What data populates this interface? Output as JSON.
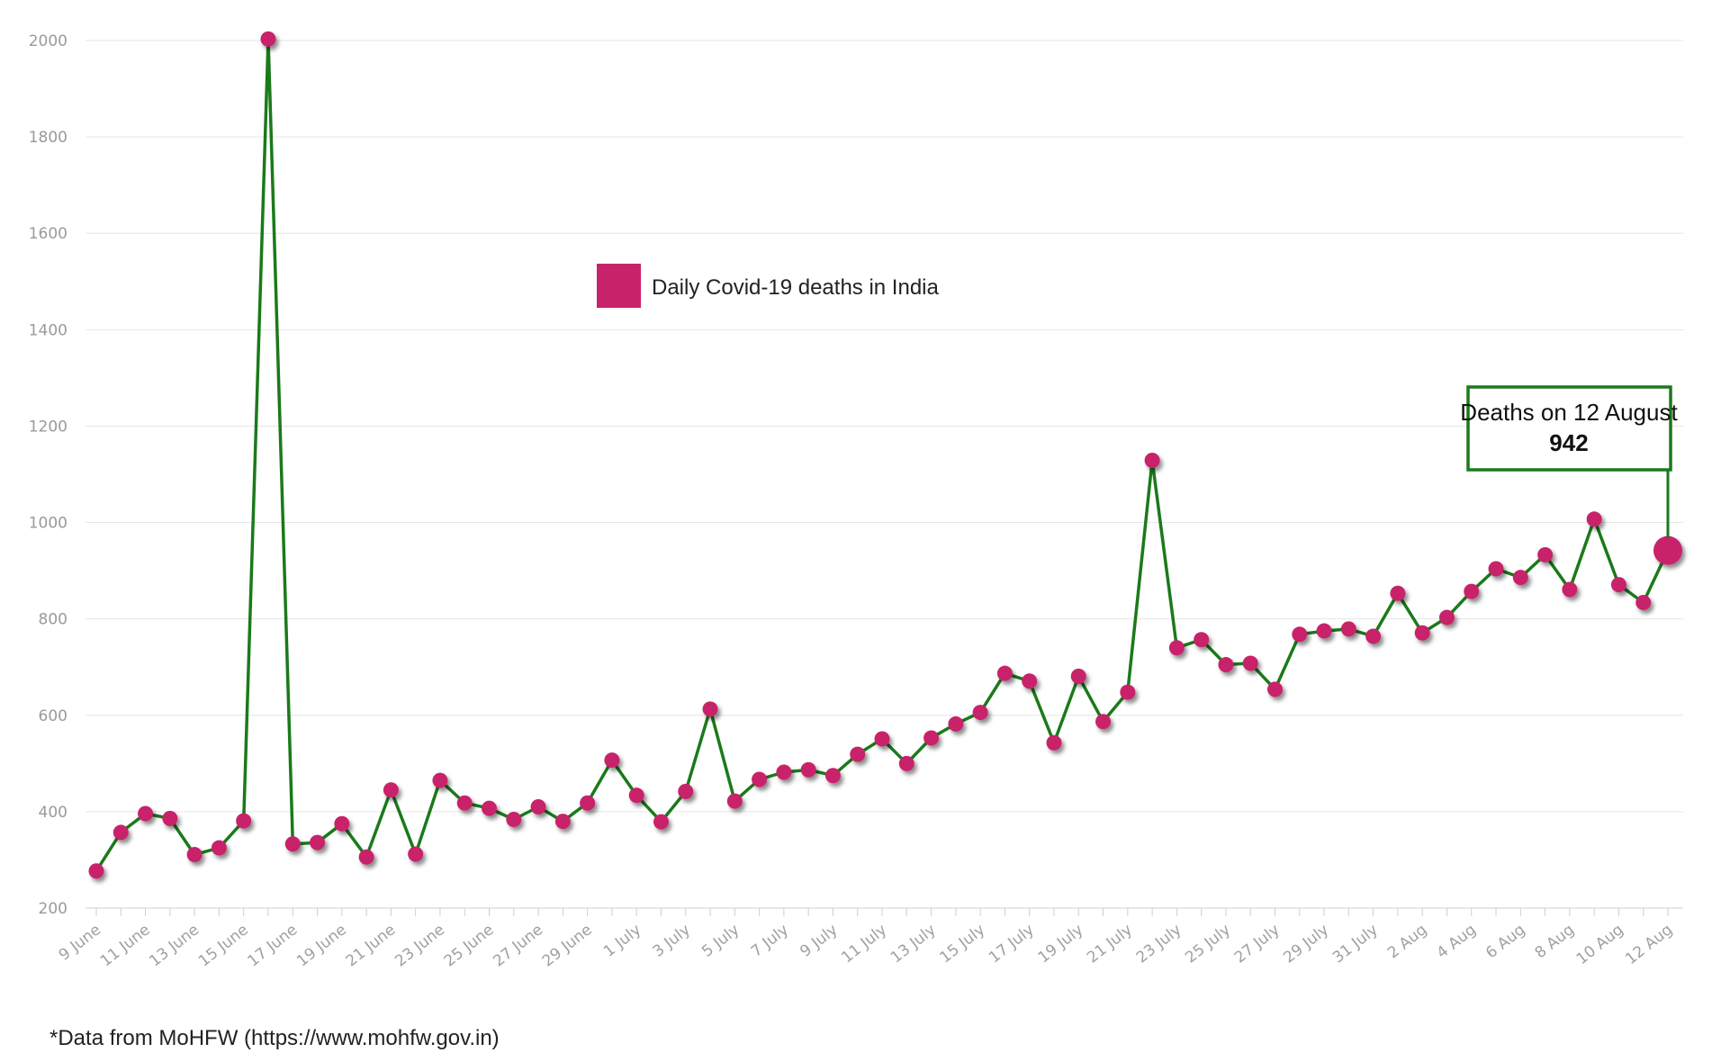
{
  "chart_data": {
    "type": "line",
    "title": "",
    "xlabel": "",
    "ylabel": "",
    "ylim": [
      200,
      2000
    ],
    "yticks": [
      200,
      400,
      600,
      800,
      1000,
      1200,
      1400,
      1600,
      1800,
      2000
    ],
    "grid": true,
    "legend_placement": "top-center",
    "series": [
      {
        "name": "Daily Covid-19 deaths in India",
        "line_color": "#1a7a1a",
        "marker_color": "#c8226a",
        "x": [
          "9 June",
          "10 June",
          "11 June",
          "12 June",
          "13 June",
          "14 June",
          "15 June",
          "16 June",
          "17 June",
          "18 June",
          "19 June",
          "20 June",
          "21 June",
          "22 June",
          "23 June",
          "24 June",
          "25 June",
          "26 June",
          "27 June",
          "28 June",
          "29 June",
          "30 June",
          "1 July",
          "2 July",
          "3 July",
          "4 July",
          "5 July",
          "6 July",
          "7 July",
          "8 July",
          "9 July",
          "10 July",
          "11 July",
          "12 July",
          "13 July",
          "14 July",
          "15 July",
          "16 July",
          "17 July",
          "18 July",
          "19 July",
          "20 July",
          "21 July",
          "22 July",
          "23 July",
          "24 July",
          "25 July",
          "26 July",
          "27 July",
          "28 July",
          "29 July",
          "30 July",
          "31 July",
          "1 Aug",
          "2 Aug",
          "3 Aug",
          "4 Aug",
          "5 Aug",
          "6 Aug",
          "7 Aug",
          "8 Aug",
          "9 Aug",
          "10 Aug",
          "11 Aug",
          "12 Aug"
        ],
        "values": [
          277,
          357,
          396,
          386,
          311,
          325,
          381,
          2003,
          333,
          336,
          375,
          306,
          445,
          312,
          465,
          418,
          407,
          384,
          410,
          380,
          418,
          507,
          434,
          379,
          442,
          613,
          422,
          467,
          482,
          487,
          475,
          519,
          551,
          500,
          553,
          582,
          606,
          687,
          671,
          543,
          681,
          587,
          648,
          1129,
          740,
          757,
          705,
          708,
          654,
          768,
          775,
          779,
          764,
          853,
          771,
          803,
          857,
          904,
          886,
          933,
          861,
          1007,
          871,
          834,
          942
        ]
      }
    ],
    "x_tick_labels": [
      "9 June",
      "11 June",
      "13 June",
      "15 June",
      "17 June",
      "19 June",
      "21 June",
      "23 June",
      "25 June",
      "27 June",
      "29 June",
      "1 July",
      "3 July",
      "5 July",
      "7 July",
      "9 July",
      "11 July",
      "13 July",
      "15 July",
      "17 July",
      "19 July",
      "21 July",
      "23 July",
      "25 July",
      "27 July",
      "29 July",
      "31 July",
      "2 Aug",
      "4 Aug",
      "6 Aug",
      "8 Aug",
      "10 Aug",
      "12 Aug"
    ],
    "annotation": {
      "title": "Deaths on 12 August",
      "value": "942",
      "target_index": 64,
      "border_color": "#1a7a1a"
    }
  },
  "footnote": "*Data from MoHFW (https://www.mohfw.gov.in)"
}
